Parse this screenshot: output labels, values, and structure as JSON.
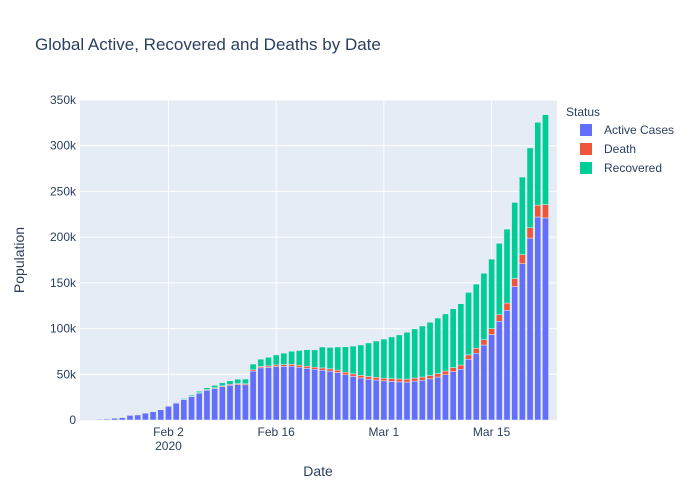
{
  "chart_data": {
    "type": "bar",
    "stacked": true,
    "title": "Global Active, Recovered and Deaths by Date",
    "xlabel": "Date",
    "ylabel": "Population",
    "ylim": [
      0,
      350000
    ],
    "yticks": [
      0,
      50000,
      100000,
      150000,
      200000,
      250000,
      300000,
      350000
    ],
    "ytick_labels": [
      "0",
      "50k",
      "100k",
      "150k",
      "200k",
      "250k",
      "300k",
      "350k"
    ],
    "x_start": "2020-01-22",
    "x_end": "2020-03-23",
    "xticks": [
      {
        "date": "2020-02-02",
        "label": "Feb 2",
        "sublabel": "2020"
      },
      {
        "date": "2020-02-16",
        "label": "Feb 16",
        "sublabel": ""
      },
      {
        "date": "2020-03-01",
        "label": "Mar 1",
        "sublabel": ""
      },
      {
        "date": "2020-03-15",
        "label": "Mar 15",
        "sublabel": ""
      }
    ],
    "grid": true,
    "legend": {
      "title": "Status",
      "position": "right"
    },
    "colors": {
      "Active Cases": "#636efa",
      "Death": "#ef553b",
      "Recovered": "#00cc96"
    },
    "series": [
      {
        "name": "Active Cases",
        "color": "#636efa",
        "values": [
          500,
          600,
          800,
          1200,
          1900,
          2700,
          5100,
          5600,
          7500,
          9000,
          11200,
          15000,
          18500,
          22500,
          25700,
          29300,
          32500,
          34500,
          36500,
          38000,
          38800,
          38500,
          53500,
          57000,
          57500,
          58500,
          58700,
          58800,
          57800,
          56500,
          55500,
          54500,
          53500,
          52000,
          49500,
          47700,
          46000,
          44700,
          43700,
          42800,
          42200,
          41700,
          41500,
          42500,
          43500,
          45000,
          47000,
          49500,
          53000,
          55500,
          66500,
          73000,
          82000,
          93500,
          108000,
          120000,
          146000,
          171000,
          199000,
          222000,
          221000
        ]
      },
      {
        "name": "Death",
        "color": "#ef553b",
        "values": [
          17,
          18,
          26,
          42,
          56,
          82,
          131,
          133,
          171,
          213,
          259,
          362,
          426,
          492,
          564,
          634,
          719,
          806,
          906,
          1013,
          1113,
          1118,
          1371,
          1523,
          1666,
          1770,
          1868,
          2007,
          2122,
          2247,
          2251,
          2458,
          2469,
          2629,
          2708,
          2770,
          2814,
          2872,
          2941,
          2996,
          3085,
          3160,
          3254,
          3348,
          3460,
          3558,
          3803,
          3996,
          4262,
          4615,
          4720,
          5404,
          5819,
          6440,
          7126,
          7905,
          8733,
          9867,
          11299,
          12973,
          14623
        ]
      },
      {
        "name": "Recovered",
        "color": "#00cc96",
        "values": [
          30,
          32,
          39,
          42,
          56,
          65,
          108,
          127,
          145,
          225,
          287,
          472,
          623,
          852,
          1124,
          1487,
          2011,
          2616,
          3244,
          3946,
          4683,
          5150,
          6295,
          8058,
          9395,
          10865,
          12583,
          14352,
          16121,
          18177,
          18890,
          22886,
          23394,
          25227,
          27905,
          30384,
          33277,
          36711,
          39782,
          42716,
          45602,
          48228,
          51170,
          53796,
          55865,
          58358,
          60694,
          62494,
          64404,
          67003,
          68324,
          70251,
          72624,
          76034,
          78088,
          80840,
          83207,
          84854,
          87256,
          90603,
          98334
        ]
      }
    ]
  }
}
